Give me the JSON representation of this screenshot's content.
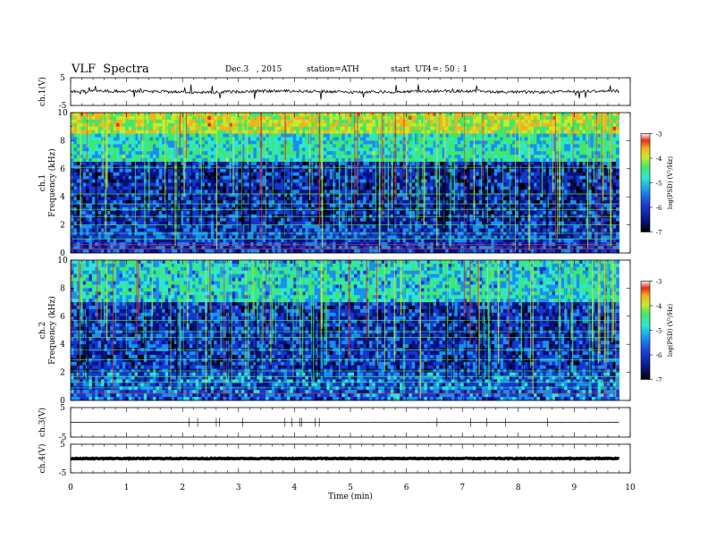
{
  "header": {
    "title": "VLF  Spectra",
    "date": "Dec.3   , 2015",
    "station": "station=ATH",
    "start_label": "start  UT  =",
    "start_time": "4   : 50 : 1"
  },
  "colors": {
    "colormap": [
      "#000000",
      "#08107a",
      "#1636d0",
      "#1a8ff0",
      "#2ee6d2",
      "#3ee86a",
      "#c8ea2a",
      "#f2b21e",
      "#e0301a",
      "#f4f4f4"
    ],
    "trace": "#000000",
    "axis": "#000000"
  },
  "chart_data": [
    {
      "type": "line",
      "panel": "ch1-waveform",
      "ylabel": "ch.1(V)",
      "yticks": [
        "5",
        "-5"
      ],
      "ylim": [
        -5,
        5
      ],
      "xlim": [
        0,
        10
      ],
      "description_values": "noisy waveform around 0 V with spikes up to ~2 V",
      "baseline": 0.0
    },
    {
      "type": "heatmap",
      "panel": "ch1-spectrogram",
      "ylabel_top": "ch.1",
      "ylabel": "Frequency  (kHz)",
      "yticks": [
        "0",
        "2",
        "4",
        "6",
        "8",
        "10"
      ],
      "ylim": [
        0,
        10
      ],
      "xlim": [
        0,
        10
      ],
      "colorbar": {
        "label": "log(PSD) (V²/Hz)",
        "ticks": [
          "-3",
          "-4",
          "-5",
          "-6",
          "-7"
        ],
        "range": [
          -7,
          -3
        ]
      },
      "bands": [
        {
          "freq_from": 0,
          "freq_to": 1.5,
          "logpsd": -6.0
        },
        {
          "freq_from": 1.5,
          "freq_to": 6,
          "logpsd": -6.5
        },
        {
          "freq_from": 6,
          "freq_to": 8,
          "logpsd": -5.5
        },
        {
          "freq_from": 8,
          "freq_to": 10,
          "logpsd": -4.5
        }
      ]
    },
    {
      "type": "heatmap",
      "panel": "ch2-spectrogram",
      "ylabel_top": "ch.2",
      "ylabel": "Frequency  (kHz)",
      "yticks": [
        "0",
        "2",
        "4",
        "6",
        "8",
        "10"
      ],
      "ylim": [
        0,
        10
      ],
      "xlim": [
        0,
        10
      ],
      "colorbar": {
        "label": "log(PSD) (V²/Hz)",
        "ticks": [
          "-3",
          "-4",
          "-5",
          "-6",
          "-7"
        ],
        "range": [
          -7,
          -3
        ]
      },
      "bands": [
        {
          "freq_from": 0,
          "freq_to": 1.5,
          "logpsd": -5.8
        },
        {
          "freq_from": 1.5,
          "freq_to": 7,
          "logpsd": -6.3
        },
        {
          "freq_from": 7,
          "freq_to": 10,
          "logpsd": -5.3
        }
      ]
    },
    {
      "type": "line",
      "panel": "ch3-waveform",
      "ylabel": "ch.3(V)",
      "yticks": [
        "5",
        "-5"
      ],
      "ylim": [
        -5,
        5
      ],
      "xlim": [
        0,
        10
      ],
      "baseline": 0.0
    },
    {
      "type": "line",
      "panel": "ch4-waveform",
      "ylabel": "ch.4(V)",
      "yticks": [
        "5",
        "-5"
      ],
      "ylim": [
        -5,
        5
      ],
      "xlim": [
        0,
        10
      ],
      "baseline": 0.0
    }
  ],
  "xaxis": {
    "label": "Time  (min)",
    "ticks": [
      "0",
      "1",
      "2",
      "3",
      "4",
      "5",
      "6",
      "7",
      "8",
      "9",
      "10"
    ]
  }
}
